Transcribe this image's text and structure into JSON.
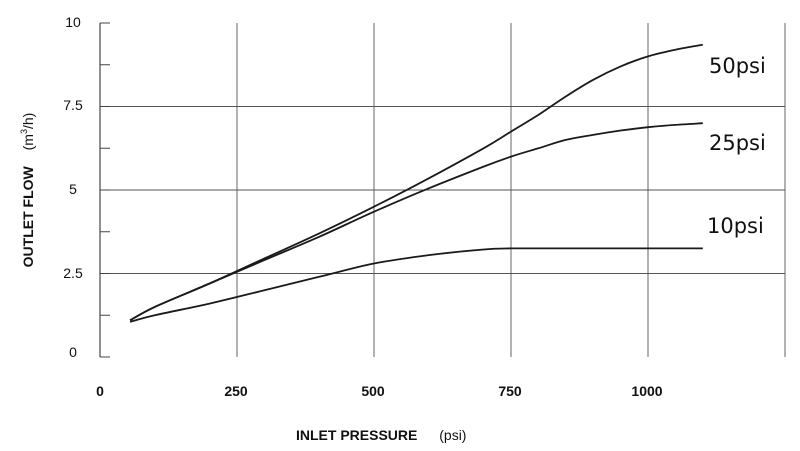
{
  "chart_data": {
    "type": "line",
    "xlabel": {
      "main": "INLET PRESSURE",
      "unit": "(psi)"
    },
    "ylabel": {
      "main": "OUTLET FLOW",
      "unit_pre": "(m",
      "unit_sup": "3",
      "unit_post": "/h)"
    },
    "x_ticks": [
      "0",
      "250",
      "500",
      "750",
      "1000"
    ],
    "x_tick_values": [
      0,
      250,
      500,
      750,
      1000
    ],
    "y_ticks": [
      "0",
      "2.5",
      "5",
      "7.5",
      "10"
    ],
    "y_tick_values": [
      0,
      2.5,
      5,
      7.5,
      10
    ],
    "xlim": [
      0,
      1250
    ],
    "ylim": [
      0,
      10
    ],
    "grid": true,
    "series": [
      {
        "name": "50psi",
        "x": [
          55,
          100,
          200,
          300,
          400,
          500,
          600,
          700,
          750,
          800,
          850,
          900,
          950,
          1000,
          1050,
          1100
        ],
        "y": [
          1.1,
          1.5,
          2.2,
          2.95,
          3.7,
          4.5,
          5.35,
          6.25,
          6.75,
          7.25,
          7.8,
          8.3,
          8.7,
          9.0,
          9.2,
          9.35
        ]
      },
      {
        "name": "25psi",
        "x": [
          55,
          100,
          200,
          300,
          400,
          500,
          600,
          700,
          750,
          800,
          850,
          900,
          950,
          1000,
          1050,
          1100
        ],
        "y": [
          1.1,
          1.5,
          2.2,
          2.9,
          3.6,
          4.35,
          5.05,
          5.7,
          6.0,
          6.25,
          6.5,
          6.65,
          6.78,
          6.88,
          6.95,
          7.0
        ]
      },
      {
        "name": "10psi",
        "x": [
          55,
          100,
          200,
          300,
          400,
          500,
          600,
          700,
          750,
          800,
          900,
          1000,
          1100
        ],
        "y": [
          1.05,
          1.25,
          1.6,
          2.0,
          2.4,
          2.8,
          3.05,
          3.22,
          3.25,
          3.25,
          3.25,
          3.25,
          3.25
        ]
      }
    ]
  }
}
